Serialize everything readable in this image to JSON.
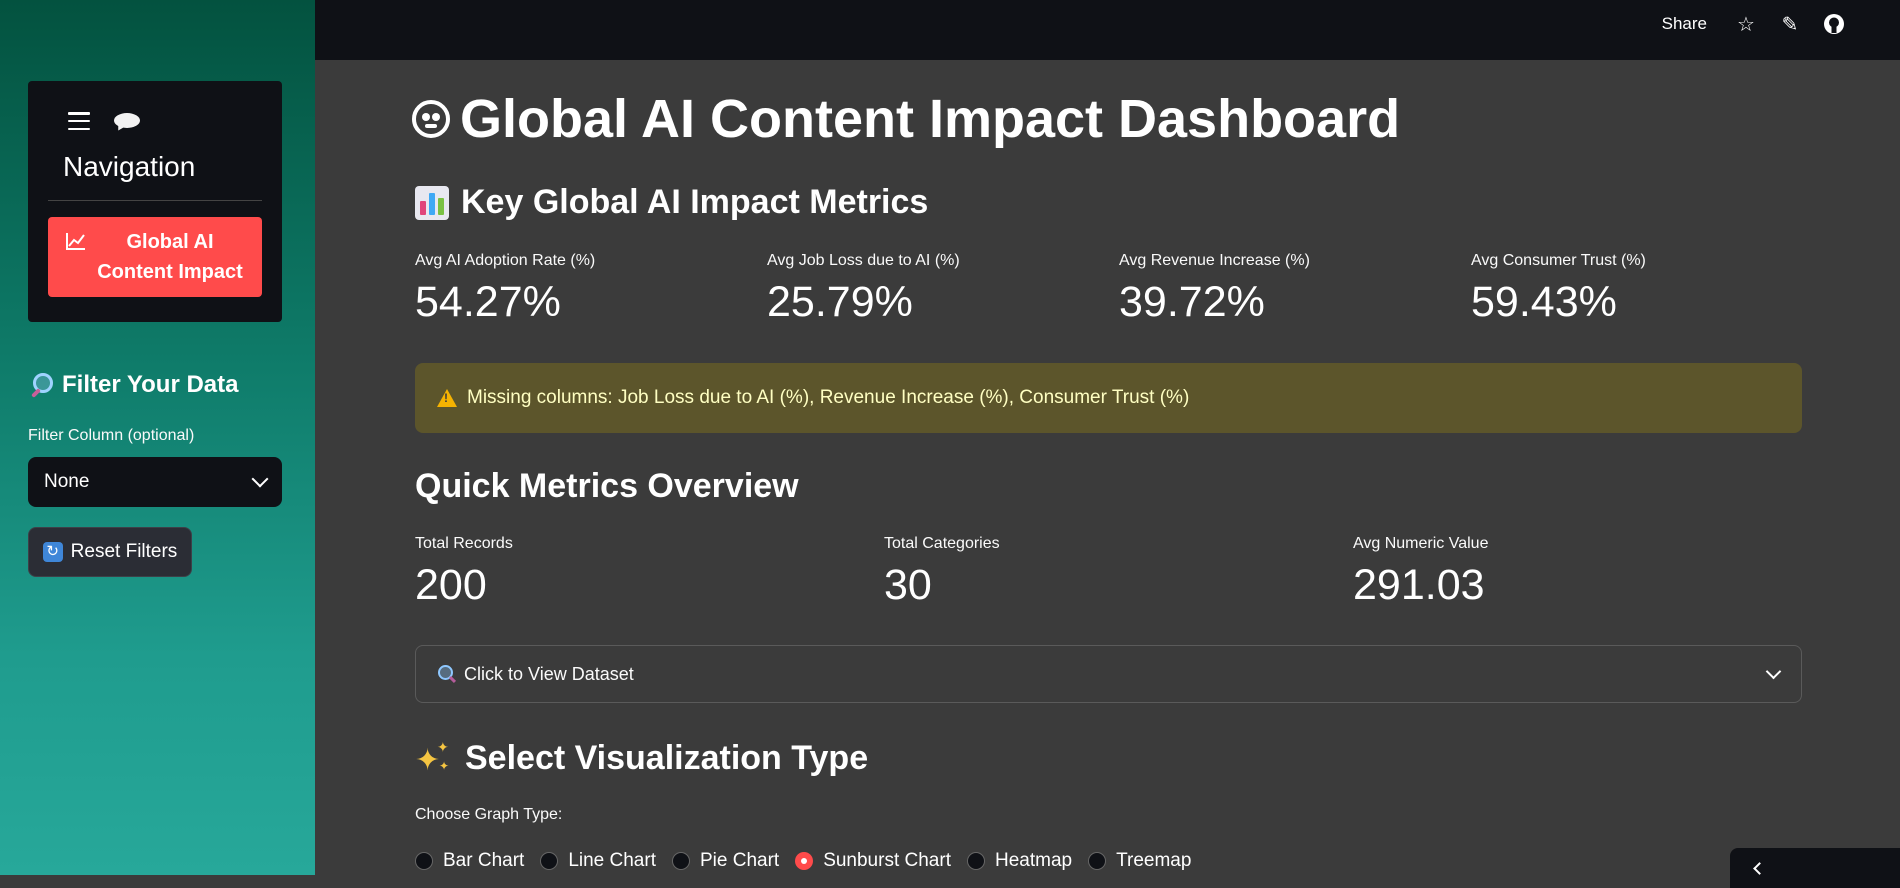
{
  "sidebar": {
    "nav_title": "Navigation",
    "nav_item": "Global AI Content Impact",
    "filter_title": "Filter Your Data",
    "filter_label": "Filter Column (optional)",
    "filter_value": "None",
    "reset_label": "Reset Filters"
  },
  "topbar": {
    "share_label": "Share"
  },
  "main": {
    "title": "Global AI Content Impact Dashboard",
    "metrics_heading": "Key Global AI Impact Metrics",
    "metrics": [
      {
        "label": "Avg AI Adoption Rate (%)",
        "value": "54.27%"
      },
      {
        "label": "Avg Job Loss due to AI (%)",
        "value": "25.79%"
      },
      {
        "label": "Avg Revenue Increase (%)",
        "value": "39.72%"
      },
      {
        "label": "Avg Consumer Trust (%)",
        "value": "59.43%"
      }
    ],
    "warning": "Missing columns: Job Loss due to AI (%), Revenue Increase (%), Consumer Trust (%)",
    "quick_heading": "Quick Metrics Overview",
    "quick": [
      {
        "label": "Total Records",
        "value": "200"
      },
      {
        "label": "Total Categories",
        "value": "30"
      },
      {
        "label": "Avg Numeric Value",
        "value": "291.03"
      }
    ],
    "expander_label": "Click to View Dataset",
    "viz_heading": "Select Visualization Type",
    "viz_label": "Choose Graph Type:",
    "viz_options": [
      "Bar Chart",
      "Line Chart",
      "Pie Chart",
      "Sunburst Chart",
      "Heatmap",
      "Treemap"
    ],
    "viz_selected": "Sunburst Chart"
  },
  "colors": {
    "accent": "#ff4b4b",
    "warning_bg": "#5c552b",
    "background": "#3b3b3b",
    "panel": "#0f1116"
  }
}
